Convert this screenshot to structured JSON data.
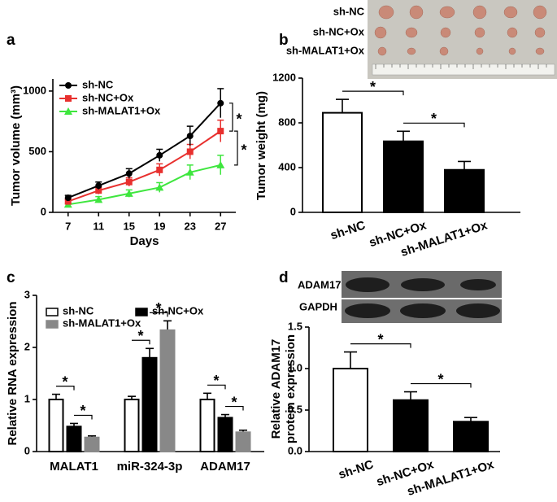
{
  "chart_data": [
    {
      "type": "line",
      "panel_label": "a",
      "xlabel": "Days",
      "ylabel": "Tumor volume (mm³)",
      "x": [
        7,
        11,
        15,
        19,
        23,
        27
      ],
      "xlim": [
        5,
        29
      ],
      "xticks": [
        7,
        11,
        15,
        19,
        23,
        27
      ],
      "ylim": [
        0,
        1100
      ],
      "yticks": [
        0,
        500,
        1000
      ],
      "legend": "upper left",
      "series": [
        {
          "name": "sh-NC",
          "color": "#000000",
          "marker": "circle",
          "values": [
            120,
            220,
            320,
            470,
            630,
            900
          ],
          "errors": [
            20,
            30,
            40,
            50,
            80,
            120
          ]
        },
        {
          "name": "sh-NC+Ox",
          "color": "#e8302e",
          "marker": "square",
          "values": [
            90,
            180,
            250,
            350,
            500,
            670
          ],
          "errors": [
            15,
            30,
            35,
            50,
            60,
            90
          ]
        },
        {
          "name": "sh-MALAT1+Ox",
          "color": "#3ee63e",
          "marker": "triangle",
          "values": [
            65,
            105,
            155,
            205,
            330,
            390
          ],
          "errors": [
            10,
            25,
            30,
            40,
            60,
            80
          ]
        }
      ],
      "significance": [
        "*",
        "*"
      ]
    },
    {
      "type": "bar",
      "panel_label": "b",
      "ylabel": "Tumor weight (mg)",
      "categories": [
        "sh-NC",
        "sh-NC+Ox",
        "sh-MALAT1+Ox"
      ],
      "values": [
        890,
        635,
        380
      ],
      "errors": [
        120,
        90,
        75
      ],
      "colors": [
        "#ffffff",
        "#000000",
        "#000000"
      ],
      "ylim": [
        0,
        1200
      ],
      "yticks": [
        0,
        400,
        800,
        1200
      ],
      "significance": [
        "*",
        "*"
      ],
      "image_labels": [
        "sh-NC",
        "sh-NC+Ox",
        "sh-MALAT1+Ox"
      ]
    },
    {
      "type": "grouped_bar",
      "panel_label": "c",
      "ylabel": "Relative RNA expression",
      "categories": [
        "MALAT1",
        "miR-324-3p",
        "ADAM17"
      ],
      "ylim": [
        0,
        3
      ],
      "yticks": [
        0,
        1,
        2,
        3
      ],
      "legend": "upper left",
      "series": [
        {
          "name": "sh-NC",
          "color": "#ffffff",
          "values": [
            1.0,
            1.0,
            1.0
          ],
          "errors": [
            0.1,
            0.06,
            0.12
          ]
        },
        {
          "name": "sh-NC+Ox",
          "color": "#000000",
          "values": [
            0.48,
            1.8,
            0.65
          ],
          "errors": [
            0.06,
            0.18,
            0.06
          ]
        },
        {
          "name": "sh-MALAT1+Ox",
          "color": "#888888",
          "values": [
            0.27,
            2.33,
            0.37
          ],
          "errors": [
            0.03,
            0.18,
            0.04
          ]
        }
      ],
      "significance": [
        "*",
        "*",
        "*",
        "*",
        "*",
        "*"
      ]
    },
    {
      "type": "bar",
      "panel_label": "d",
      "ylabel": [
        "Relative ADAM17",
        "protein expression"
      ],
      "categories": [
        "sh-NC",
        "sh-NC+Ox",
        "sh-MALAT1+Ox"
      ],
      "values": [
        1.0,
        0.62,
        0.36
      ],
      "errors": [
        0.2,
        0.1,
        0.05
      ],
      "colors": [
        "#ffffff",
        "#000000",
        "#000000"
      ],
      "ylim": [
        0,
        1.5
      ],
      "yticks": [
        {
          "value": 0,
          "label": "0.0"
        },
        0.5,
        {
          "value": 1,
          "label": "1.0"
        },
        1.5
      ],
      "significance": [
        "*",
        "*"
      ],
      "blot_labels": [
        "ADAM17",
        "GAPDH"
      ]
    }
  ]
}
